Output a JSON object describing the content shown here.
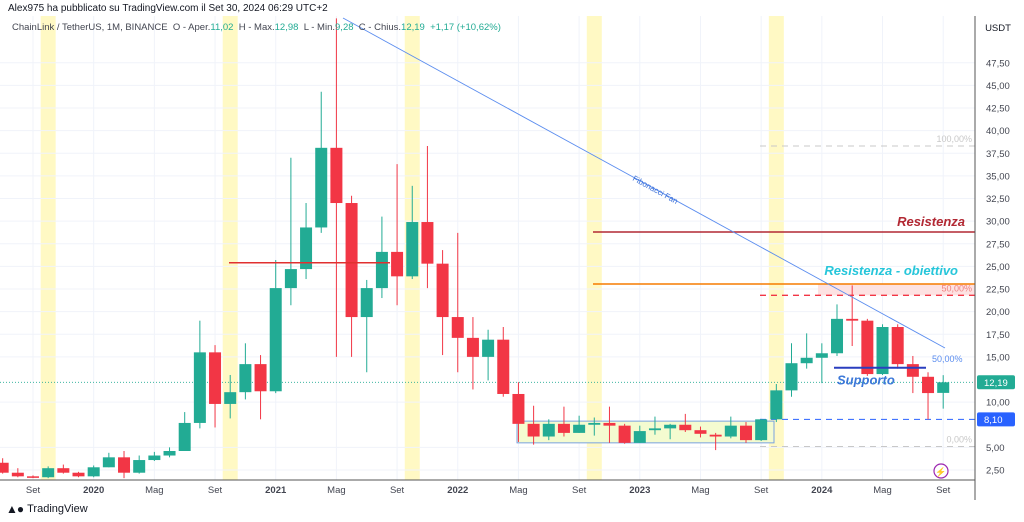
{
  "header": {
    "published": "Alex975 ha pubblicato su TradingView.com il Set 30, 2024 06:29 UTC+2"
  },
  "legend": {
    "symbol": "ChainLink / TetherUS, 1M, BINANCE",
    "open_label": "O - Aper.",
    "open": "11,02",
    "high_label": "H - Max.",
    "high": "12,98",
    "low_label": "L - Min.",
    "low": "9,28",
    "close_label": "C - Chius.",
    "close": "12,19",
    "change": "+1,17 (+10,62%)"
  },
  "axis": {
    "currency": "USDT",
    "price_ticks": [
      "47,50",
      "45,00",
      "42,50",
      "40,00",
      "37,50",
      "35,00",
      "32,50",
      "30,00",
      "27,50",
      "25,00",
      "22,50",
      "20,00",
      "17,50",
      "15,00",
      "10,00",
      "5,00",
      "2,50"
    ],
    "price_tick_values": [
      47.5,
      45,
      42.5,
      40,
      37.5,
      35,
      32.5,
      30,
      27.5,
      25,
      22.5,
      20,
      17.5,
      15,
      10,
      5,
      2.5
    ],
    "time_ticks": [
      "Set",
      "2020",
      "Mag",
      "Set",
      "2021",
      "Mag",
      "Set",
      "2022",
      "Mag",
      "Set",
      "2023",
      "Mag",
      "Set",
      "2024",
      "Mag",
      "Set"
    ],
    "time_tick_month_index": [
      2,
      6,
      10,
      14,
      18,
      22,
      26,
      30,
      34,
      38,
      42,
      46,
      50,
      54,
      58,
      62
    ],
    "bold_ticks": [
      "2020",
      "2021",
      "2022",
      "2023",
      "2024"
    ],
    "last_price_label": "12,19",
    "last_price": 12.19,
    "support_price_label": "8,10",
    "support_price": 8.1
  },
  "chart_data": {
    "type": "candlestick",
    "title": "ChainLink / TetherUS, 1M, BINANCE",
    "ohlc_fields": [
      "open",
      "high",
      "low",
      "close"
    ],
    "candles": [
      [
        3.3,
        3.8,
        2.1,
        2.2
      ],
      [
        2.2,
        2.7,
        1.7,
        1.8
      ],
      [
        1.8,
        1.9,
        1.6,
        1.7
      ],
      [
        1.7,
        2.9,
        1.6,
        2.7
      ],
      [
        2.7,
        3.1,
        2.1,
        2.2
      ],
      [
        2.2,
        2.3,
        1.7,
        1.8
      ],
      [
        1.8,
        3.0,
        1.7,
        2.8
      ],
      [
        2.8,
        4.4,
        2.8,
        3.9
      ],
      [
        3.9,
        4.6,
        1.6,
        2.2
      ],
      [
        2.2,
        4.1,
        2.1,
        3.6
      ],
      [
        3.6,
        4.5,
        3.5,
        4.1
      ],
      [
        4.1,
        5.0,
        3.9,
        4.6
      ],
      [
        4.6,
        8.9,
        4.6,
        7.7
      ],
      [
        7.7,
        19.0,
        7.1,
        15.5
      ],
      [
        15.5,
        16.3,
        7.2,
        9.8
      ],
      [
        9.8,
        13.0,
        8.2,
        11.1
      ],
      [
        11.1,
        16.5,
        10.3,
        14.2
      ],
      [
        14.2,
        15.2,
        8.1,
        11.2
      ],
      [
        11.2,
        25.7,
        11.0,
        22.6
      ],
      [
        22.6,
        37.0,
        20.7,
        24.7
      ],
      [
        24.7,
        32.0,
        23.6,
        29.3
      ],
      [
        29.3,
        44.3,
        28.7,
        38.1
      ],
      [
        38.1,
        52.4,
        15.0,
        32.0
      ],
      [
        32.0,
        32.8,
        15.0,
        19.4
      ],
      [
        19.4,
        23.5,
        13.3,
        22.6
      ],
      [
        22.6,
        30.5,
        21.5,
        26.6
      ],
      [
        26.6,
        36.3,
        20.7,
        23.9
      ],
      [
        23.9,
        33.9,
        23.6,
        29.9
      ],
      [
        29.9,
        38.3,
        22.6,
        25.3
      ],
      [
        25.3,
        26.8,
        15.2,
        19.4
      ],
      [
        19.4,
        28.7,
        13.3,
        17.1
      ],
      [
        17.1,
        19.4,
        11.4,
        15.0
      ],
      [
        15.0,
        18.0,
        12.4,
        16.9
      ],
      [
        16.9,
        18.3,
        10.6,
        10.9
      ],
      [
        10.9,
        12.2,
        5.6,
        7.6
      ],
      [
        7.6,
        9.6,
        5.3,
        6.2
      ],
      [
        6.2,
        8.1,
        5.8,
        7.6
      ],
      [
        7.6,
        9.5,
        6.2,
        6.6
      ],
      [
        6.6,
        8.5,
        6.6,
        7.5
      ],
      [
        7.5,
        8.3,
        6.3,
        7.7
      ],
      [
        7.7,
        9.5,
        5.5,
        7.4
      ],
      [
        7.4,
        7.6,
        5.4,
        5.5
      ],
      [
        5.5,
        7.4,
        5.5,
        6.8
      ],
      [
        6.9,
        8.4,
        6.4,
        7.1
      ],
      [
        7.1,
        7.6,
        5.9,
        7.5
      ],
      [
        7.5,
        8.7,
        6.7,
        6.9
      ],
      [
        6.9,
        7.3,
        6.1,
        6.5
      ],
      [
        6.4,
        6.6,
        4.7,
        6.2
      ],
      [
        6.2,
        8.4,
        6.0,
        7.4
      ],
      [
        7.4,
        7.8,
        5.5,
        5.8
      ],
      [
        5.8,
        8.1,
        5.7,
        8.1
      ],
      [
        8.1,
        12.0,
        7.8,
        11.3
      ],
      [
        11.3,
        16.5,
        10.6,
        14.3
      ],
      [
        14.3,
        17.6,
        13.7,
        14.9
      ],
      [
        14.9,
        16.5,
        12.1,
        15.4
      ],
      [
        15.4,
        20.8,
        15.1,
        19.2
      ],
      [
        19.2,
        22.9,
        16.2,
        19.0
      ],
      [
        19.0,
        19.2,
        12.9,
        13.1
      ],
      [
        13.1,
        18.6,
        13.0,
        18.3
      ],
      [
        18.3,
        18.6,
        13.7,
        14.2
      ],
      [
        14.2,
        15.1,
        11.0,
        12.8
      ],
      [
        12.8,
        13.3,
        8.1,
        11.0
      ],
      [
        11.02,
        12.98,
        9.28,
        12.19
      ]
    ],
    "annotations": {
      "resistance_label": "Resistenza",
      "resistance_price": 28.8,
      "target_label": "Resistenza - obiettivo",
      "target_price": 23.05,
      "support_label": "Supporto",
      "support_price": 13.8,
      "old_level_price": 25.4,
      "fib_fan_label": "Fibonacci Fan",
      "fib_levels": [
        {
          "label": "100,00%",
          "price": 38.3
        },
        {
          "label": "50,00%",
          "price": 21.8
        },
        {
          "label": "0,00%",
          "price": 5.1
        }
      ],
      "fan_50_label": "50,00%",
      "range_box": {
        "low": 5.5,
        "high": 7.9
      }
    },
    "colors": {
      "up": "#22ab94",
      "down": "#f23645",
      "resistance": "#b22833",
      "target": "#f57c00",
      "target_text": "#26c6da",
      "support": "#2a3fbf",
      "support_text": "#3c78d8",
      "fan": "#5b8def",
      "season": "#fff9c4"
    }
  },
  "footer": {
    "brand": "TradingView"
  }
}
